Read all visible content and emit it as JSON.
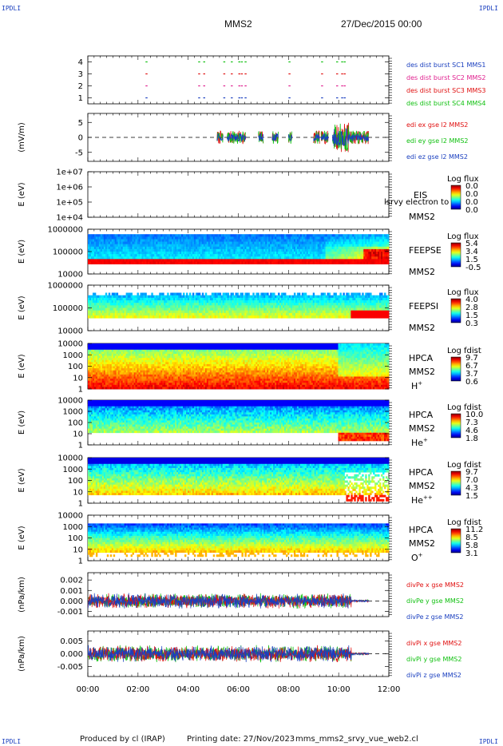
{
  "corners": {
    "tl": "IPDLI",
    "tr": "IPDLI",
    "bl": "IPDLI",
    "br": "IPDLI"
  },
  "header": {
    "spacecraft": "MMS2",
    "date": "27/Dec/2015 00:00"
  },
  "footer": {
    "produced": "Produced by cl (IRAP)",
    "printing": "Printing date: 27/Nov/2023",
    "file": "mms_mms2_srvy_vue_web2.cl"
  },
  "x_axis": {
    "ticks": [
      "00:00",
      "02:00",
      "04:00",
      "06:00",
      "08:00",
      "10:00",
      "12:00"
    ],
    "range_hours": [
      0,
      12
    ]
  },
  "chart_data": [
    {
      "type": "scatter",
      "id": "burst",
      "yticks": [
        "4",
        "3",
        "2",
        "1"
      ],
      "ylim": [
        0.5,
        4.5
      ],
      "series": [
        {
          "name": "des dist burst SC1 MMS1",
          "color": "#1a3fbf",
          "y": 1
        },
        {
          "name": "des dist burst SC2 MMS2",
          "color": "#e0208f",
          "y": 2
        },
        {
          "name": "des dist burst SC3 MMS3",
          "color": "#e01010",
          "y": 3
        },
        {
          "name": "des dist burst SC4 MMS4",
          "color": "#10c010",
          "y": 4
        }
      ],
      "x_hours": [
        2.3,
        4.4,
        4.6,
        5.4,
        5.7,
        6.0,
        6.1,
        6.25,
        8.0,
        9.3,
        9.9,
        10.1,
        10.2
      ]
    },
    {
      "type": "line",
      "id": "edi",
      "ylabel": "(mV/m)",
      "yticks": [
        "5",
        "0",
        "-5"
      ],
      "ytick_values": [
        5,
        0,
        -5
      ],
      "ylim": [
        -8,
        8
      ],
      "series": [
        {
          "name": "edi ex gse l2 MMS2",
          "color": "#e01010"
        },
        {
          "name": "edi ey gse l2 MMS2",
          "color": "#10c010"
        },
        {
          "name": "edi ez gse l2 MMS2",
          "color": "#1a3fbf"
        }
      ],
      "active_windows_hours": [
        [
          5.15,
          5.4
        ],
        [
          5.55,
          6.3
        ],
        [
          6.8,
          7.0
        ],
        [
          7.35,
          7.6
        ],
        [
          8.0,
          8.15
        ],
        [
          9.0,
          9.25
        ],
        [
          9.3,
          9.6
        ],
        [
          9.75,
          11.2
        ]
      ]
    },
    {
      "type": "heatmap",
      "id": "eis",
      "ylabel": "E (eV)",
      "yticks": [
        "1e+07",
        "1e+06",
        "1e+05",
        "1e+04"
      ],
      "labels": [
        "EIS",
        "MMS2"
      ],
      "overlay_text": "lsrvy electron to",
      "colorbar": {
        "title": "Log flux",
        "ticks": [
          "0.0",
          "0.0",
          "0.0",
          "0.0"
        ]
      }
    },
    {
      "type": "heatmap",
      "id": "feeps_e",
      "ylabel": "E (eV)",
      "yticks": [
        "1000000",
        "100000",
        "10000"
      ],
      "labels": [
        "FEEPSE",
        "MMS2"
      ],
      "colorbar": {
        "title": "Log flux",
        "ticks": [
          "5.4",
          "3.4",
          "1.5",
          "-0.5"
        ]
      }
    },
    {
      "type": "heatmap",
      "id": "feeps_i",
      "ylabel": "E (eV)",
      "yticks": [
        "1000000",
        "100000",
        "10000"
      ],
      "labels": [
        "FEEPSI",
        "MMS2"
      ],
      "colorbar": {
        "title": "Log flux",
        "ticks": [
          "4.0",
          "2.8",
          "1.5",
          "0.3"
        ]
      }
    },
    {
      "type": "heatmap",
      "id": "hpca_h",
      "ylabel": "E (eV)",
      "yticks": [
        "10000",
        "1000",
        "100",
        "10",
        "1"
      ],
      "labels": [
        "HPCA",
        "MMS2",
        "H+"
      ],
      "colorbar": {
        "title": "Log fdist",
        "ticks": [
          "9.7",
          "6.7",
          "3.7",
          "0.6"
        ]
      }
    },
    {
      "type": "heatmap",
      "id": "hpca_he",
      "ylabel": "E (eV)",
      "yticks": [
        "10000",
        "1000",
        "100",
        "10",
        "1"
      ],
      "labels": [
        "HPCA",
        "MMS2",
        "He+"
      ],
      "colorbar": {
        "title": "Log fdist",
        "ticks": [
          "10.0",
          "7.3",
          "4.6",
          "1.8"
        ]
      }
    },
    {
      "type": "heatmap",
      "id": "hpca_hepp",
      "ylabel": "E (eV)",
      "yticks": [
        "10000",
        "1000",
        "100",
        "10",
        "1"
      ],
      "labels": [
        "HPCA",
        "MMS2",
        "He++"
      ],
      "colorbar": {
        "title": "Log fdist",
        "ticks": [
          "9.7",
          "7.0",
          "4.3",
          "1.5"
        ]
      }
    },
    {
      "type": "heatmap",
      "id": "hpca_o",
      "ylabel": "E (eV)",
      "yticks": [
        "10000",
        "1000",
        "100",
        "10",
        "1"
      ],
      "labels": [
        "HPCA",
        "MMS2",
        "O+"
      ],
      "colorbar": {
        "title": "Log fdist",
        "ticks": [
          "11.2",
          "8.5",
          "5.8",
          "3.1"
        ]
      }
    },
    {
      "type": "line",
      "id": "divpe",
      "ylabel": "(nPa/km)",
      "yticks": [
        "0.002",
        "0.001",
        "0.000",
        "-0.001"
      ],
      "ytick_values": [
        0.002,
        0.001,
        0,
        -0.001
      ],
      "ylim": [
        -0.0015,
        0.0027
      ],
      "series": [
        {
          "name": "divPe x gse MMS2",
          "color": "#e01010"
        },
        {
          "name": "divPe y gse MMS2",
          "color": "#10c010"
        },
        {
          "name": "divPe z gse MMS2",
          "color": "#1a3fbf"
        }
      ]
    },
    {
      "type": "line",
      "id": "divpi",
      "ylabel": "(nPa/km)",
      "yticks": [
        "0.005",
        "0.000",
        "-0.005"
      ],
      "ytick_values": [
        0.005,
        0,
        -0.005
      ],
      "ylim": [
        -0.009,
        0.009
      ],
      "series": [
        {
          "name": "divPi x gse MMS2",
          "color": "#e01010"
        },
        {
          "name": "divPi y gse MMS2",
          "color": "#10c010"
        },
        {
          "name": "divPi z gse MMS2",
          "color": "#1a3fbf"
        }
      ]
    }
  ]
}
